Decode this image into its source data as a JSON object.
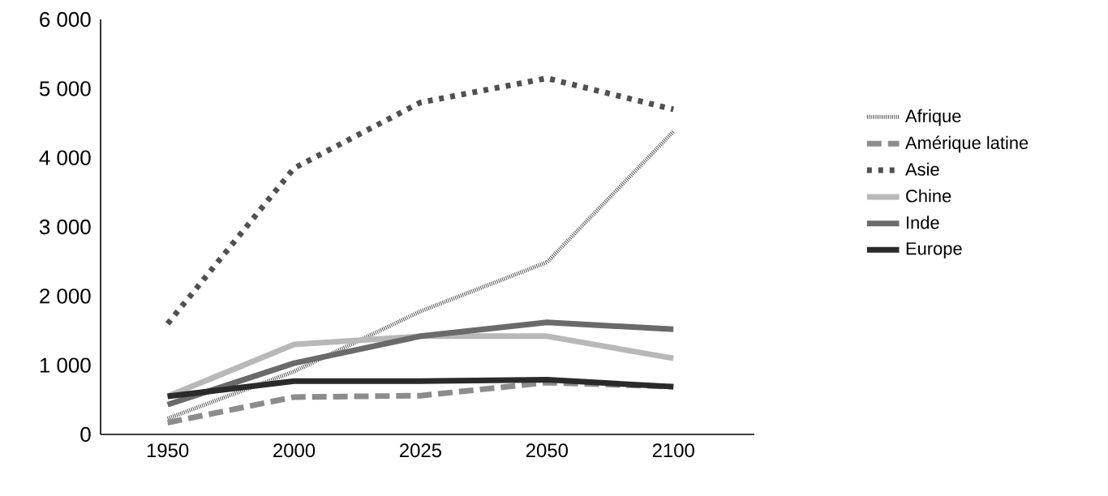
{
  "chart_data": {
    "type": "line",
    "categories": [
      "1950",
      "2000",
      "2025",
      "2050",
      "2100"
    ],
    "series": [
      {
        "name": "Afrique",
        "color": "#555555",
        "line_style": "dotted",
        "values": [
          230,
          910,
          1780,
          2490,
          4380
        ]
      },
      {
        "name": "Amérique latine",
        "color": "#8c8c8c",
        "line_style": "dashed",
        "values": [
          170,
          540,
          560,
          750,
          690
        ]
      },
      {
        "name": "Asie",
        "color": "#505050",
        "line_style": "dotted",
        "values": [
          1600,
          3850,
          4800,
          5150,
          4700
        ]
      },
      {
        "name": "Chine",
        "color": "#b8b8b8",
        "line_style": "solid",
        "values": [
          550,
          1300,
          1420,
          1420,
          1100
        ]
      },
      {
        "name": "Inde",
        "color": "#6a6a6a",
        "line_style": "solid",
        "values": [
          430,
          1030,
          1420,
          1620,
          1520
        ]
      },
      {
        "name": "Europe",
        "color": "#2a2a2a",
        "line_style": "solid",
        "values": [
          550,
          770,
          770,
          790,
          690
        ]
      }
    ],
    "ylim": [
      0,
      6000
    ],
    "yticks": [
      0,
      {
        "value": 1000,
        "label": "1 000"
      },
      {
        "value": 2000,
        "label": "2 000"
      },
      {
        "value": 3000,
        "label": "3 000"
      },
      {
        "value": 4000,
        "label": "4 000"
      },
      {
        "value": 5000,
        "label": "5 000"
      },
      {
        "value": 6000,
        "label": "6 000"
      }
    ],
    "legend": "right",
    "grid": false
  }
}
